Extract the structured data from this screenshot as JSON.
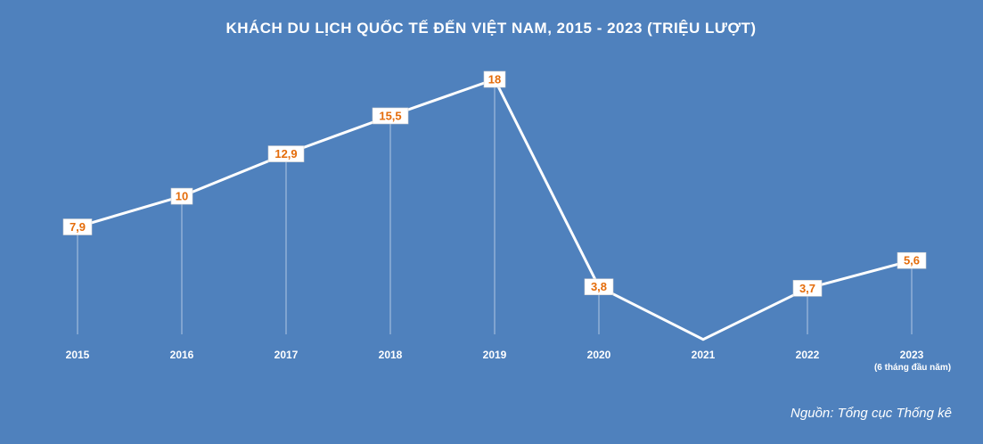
{
  "chart_data": {
    "type": "line",
    "title": "KHÁCH DU LỊCH QUỐC TẾ ĐẾN VIỆT NAM, 2015 - 2023 (TRIỆU LƯỢT)",
    "categories": [
      "2015",
      "2016",
      "2017",
      "2018",
      "2019",
      "2020",
      "2021",
      "2022",
      "2023"
    ],
    "category_sublabels": [
      "",
      "",
      "",
      "",
      "",
      "",
      "",
      "",
      "(6 tháng đầu năm)"
    ],
    "series": [
      {
        "values": [
          7.9,
          10,
          12.9,
          15.5,
          18,
          3.8,
          0.2,
          3.7,
          5.6
        ],
        "labels": [
          "7,9",
          "10",
          "12,9",
          "15,5",
          "18",
          "3,8",
          "",
          "3,7",
          "5,6"
        ]
      }
    ],
    "ylim": [
      0,
      18
    ],
    "xlabel": "",
    "ylabel": "",
    "grid": false,
    "legend": "none",
    "source": "Nguồn: Tổng cục Thống kê",
    "colors": {
      "background": "#4f81bd",
      "line": "#ffffff",
      "label_text": "#e46c0a",
      "label_box": "#ffffff"
    }
  }
}
